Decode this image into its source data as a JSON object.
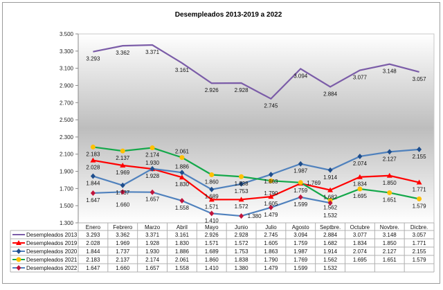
{
  "chart_data": {
    "type": "line",
    "title": "Desempleados 2013-2019 a 2022",
    "xlabel": "",
    "ylabel": "",
    "ylim": [
      1300,
      3500
    ],
    "yticks": [
      "1.300",
      "1.500",
      "1.700",
      "1.900",
      "2.100",
      "2.300",
      "2.500",
      "2.700",
      "2.900",
      "3.100",
      "3.300",
      "3.500"
    ],
    "grid": false,
    "legend": "bottom data table",
    "categories": [
      "Enero",
      "Febrero",
      "Marzo",
      "Abril",
      "Mayo",
      "Junio",
      "Julio",
      "Agosto",
      "Septbre.",
      "Octubre",
      "Novbre.",
      "Dicbre."
    ],
    "series": [
      {
        "name": "Desempleados 2013",
        "color": "#7B5CA8",
        "marker": "none",
        "marker_color": "#7B5CA8",
        "values": [
          3293,
          3362,
          3371,
          3161,
          2926,
          2928,
          2745,
          3094,
          2884,
          3077,
          3148,
          3057
        ]
      },
      {
        "name": "Desempleados 2019",
        "color": "#FF0000",
        "marker": "triangle",
        "marker_color": "#FF0000",
        "values": [
          2028,
          1969,
          1928,
          1830,
          1571,
          1572,
          1605,
          1759,
          1682,
          1834,
          1850,
          1771
        ]
      },
      {
        "name": "Desempleados 2020",
        "color": "#4F81BD",
        "marker": "diamond",
        "marker_color": "#1F4E8C",
        "values": [
          1844,
          1737,
          1930,
          1886,
          1689,
          1753,
          1863,
          1987,
          1914,
          2074,
          2127,
          2155
        ]
      },
      {
        "name": "Desempleados 2021",
        "color": "#14A84A",
        "marker": "circle",
        "marker_color": "#FFC000",
        "values": [
          2183,
          2137,
          2174,
          2061,
          1860,
          1838,
          1790,
          1769,
          1562,
          1695,
          1651,
          1579
        ]
      },
      {
        "name": "Desempleados 2022",
        "color": "#4F81BD",
        "marker": "diamond",
        "marker_color": "#C0143C",
        "values": [
          1647,
          1660,
          1657,
          1558,
          1410,
          1380,
          1479,
          1599,
          1532,
          null,
          null,
          null
        ]
      }
    ]
  }
}
